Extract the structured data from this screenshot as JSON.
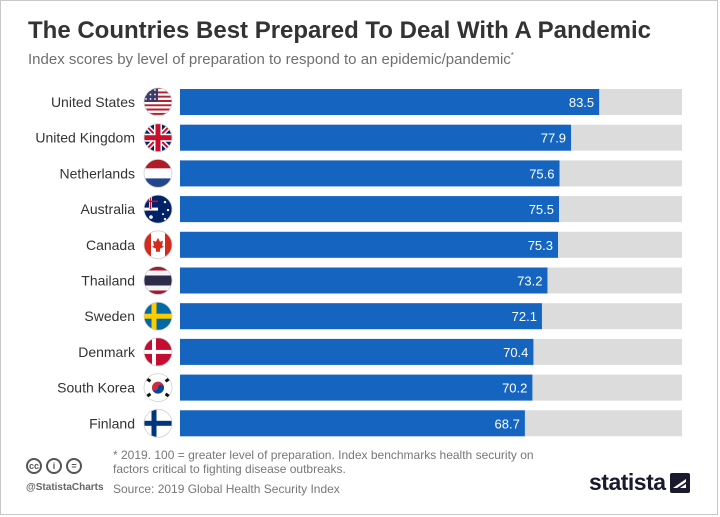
{
  "header": {
    "title": "The Countries Best Prepared To Deal With A Pandemic",
    "subtitle": "Index scores by level of preparation to respond to an epidemic/pandemic",
    "subtitle_mark": "*"
  },
  "chart_data": {
    "type": "bar",
    "orientation": "horizontal",
    "title": "The Countries Best Prepared To Deal With A Pandemic",
    "subtitle": "Index scores by level of preparation to respond to an epidemic/pandemic*",
    "categories": [
      "United States",
      "United Kingdom",
      "Netherlands",
      "Australia",
      "Canada",
      "Thailand",
      "Sweden",
      "Denmark",
      "South Korea",
      "Finland"
    ],
    "values": [
      83.5,
      77.9,
      75.6,
      75.5,
      75.3,
      73.2,
      72.1,
      70.4,
      70.2,
      68.7
    ],
    "value_labels": [
      "83.5",
      "77.9",
      "75.6",
      "75.5",
      "75.3",
      "73.2",
      "72.1",
      "70.4",
      "70.2",
      "68.7"
    ],
    "xlim": [
      0,
      100
    ],
    "background_bar_max": 100,
    "grid": false,
    "bar_color": "#1565c0",
    "track_color": "#dcdcdc",
    "flag_icons": [
      "us-flag-icon",
      "uk-flag-icon",
      "netherlands-flag-icon",
      "australia-flag-icon",
      "canada-flag-icon",
      "thailand-flag-icon",
      "sweden-flag-icon",
      "denmark-flag-icon",
      "south-korea-flag-icon",
      "finland-flag-icon"
    ]
  },
  "footer": {
    "footnote": "* 2019. 100 = greater level of preparation. Index benchmarks health security on factors critical to fighting disease outbreaks.",
    "source": "Source: 2019 Global Health Security Index",
    "handle": "@StatistaCharts",
    "brand": "statista",
    "cc_icons": [
      "cc",
      "i",
      "="
    ]
  }
}
